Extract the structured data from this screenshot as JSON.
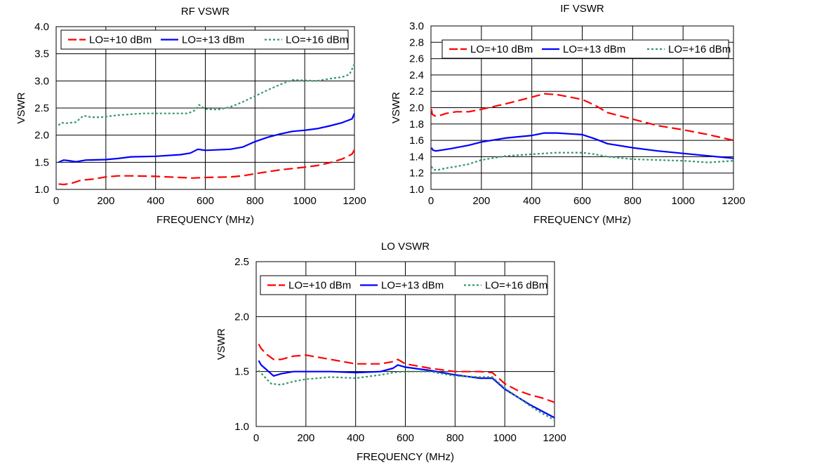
{
  "chart_data": [
    {
      "type": "line",
      "title": "RF VSWR",
      "xlabel": "FREQUENCY (MHz)",
      "ylabel": "VSWR",
      "xlim": [
        0,
        1200
      ],
      "ylim": [
        1.0,
        4.0
      ],
      "xticks": [
        0,
        200,
        400,
        600,
        800,
        1000,
        1200
      ],
      "xtick_labels": [
        "0",
        "200",
        "400",
        "600",
        "800",
        "1000",
        "1200"
      ],
      "yticks": [
        1.0,
        1.5,
        2.0,
        2.5,
        3.0,
        3.5,
        4.0
      ],
      "ytick_labels": [
        "1.0",
        "1.5",
        "2.0",
        "2.5",
        "3.0",
        "3.5",
        "4.0"
      ],
      "grid": true,
      "legend_position": "top",
      "series": [
        {
          "name": "LO=+10 dBm",
          "color": "#ff0000",
          "style": "longdash",
          "x": [
            10,
            30,
            60,
            100,
            150,
            200,
            250,
            300,
            400,
            500,
            550,
            600,
            700,
            750,
            800,
            900,
            1000,
            1050,
            1100,
            1150,
            1190,
            1200
          ],
          "y": [
            1.1,
            1.09,
            1.11,
            1.17,
            1.19,
            1.23,
            1.25,
            1.25,
            1.24,
            1.22,
            1.21,
            1.22,
            1.23,
            1.25,
            1.29,
            1.36,
            1.41,
            1.44,
            1.49,
            1.56,
            1.65,
            1.73
          ]
        },
        {
          "name": "LO=+13 dBm",
          "color": "#0000ff",
          "style": "solid",
          "x": [
            10,
            30,
            50,
            80,
            120,
            200,
            250,
            300,
            400,
            500,
            540,
            570,
            600,
            700,
            750,
            800,
            850,
            900,
            950,
            1000,
            1050,
            1100,
            1150,
            1190,
            1200
          ],
          "y": [
            1.5,
            1.54,
            1.53,
            1.51,
            1.54,
            1.55,
            1.57,
            1.6,
            1.61,
            1.64,
            1.67,
            1.74,
            1.72,
            1.74,
            1.78,
            1.88,
            1.96,
            2.02,
            2.07,
            2.09,
            2.12,
            2.17,
            2.23,
            2.3,
            2.4
          ]
        },
        {
          "name": "LO=+16 dBm",
          "color": "#339966",
          "style": "dotted",
          "x": [
            10,
            20,
            40,
            80,
            110,
            140,
            180,
            250,
            350,
            450,
            530,
            560,
            575,
            600,
            650,
            700,
            750,
            800,
            850,
            900,
            950,
            1000,
            1050,
            1100,
            1150,
            1180,
            1200
          ],
          "y": [
            2.18,
            2.23,
            2.22,
            2.24,
            2.36,
            2.33,
            2.33,
            2.37,
            2.4,
            2.4,
            2.4,
            2.46,
            2.56,
            2.48,
            2.47,
            2.52,
            2.61,
            2.72,
            2.83,
            2.93,
            3.02,
            3.01,
            3.0,
            3.04,
            3.07,
            3.12,
            3.31
          ]
        }
      ]
    },
    {
      "type": "line",
      "title": "IF VSWR",
      "xlabel": "FREQUENCY (MHz)",
      "ylabel": "VSWR",
      "xlim": [
        0,
        1200
      ],
      "ylim": [
        1.0,
        3.0
      ],
      "xticks": [
        0,
        200,
        400,
        600,
        800,
        1000,
        1200
      ],
      "xtick_labels": [
        "0",
        "200",
        "400",
        "600",
        "800",
        "1000",
        "1200"
      ],
      "yticks": [
        1.0,
        1.2,
        1.4,
        1.6,
        1.8,
        2.0,
        2.2,
        2.4,
        2.6,
        2.8,
        3.0
      ],
      "ytick_labels": [
        "1.0",
        "1.2",
        "1.4",
        "1.6",
        "1.8",
        "2.0",
        "2.2",
        "2.4",
        "2.6",
        "2.8",
        "3.0"
      ],
      "grid": true,
      "legend_position": "top",
      "series": [
        {
          "name": "LO=+10 dBm",
          "color": "#ff0000",
          "style": "longdash",
          "x": [
            2,
            5,
            15,
            30,
            60,
            100,
            150,
            200,
            300,
            400,
            450,
            500,
            600,
            650,
            700,
            800,
            900,
            1000,
            1100,
            1200
          ],
          "y": [
            1.98,
            1.92,
            1.9,
            1.9,
            1.93,
            1.95,
            1.95,
            1.98,
            2.05,
            2.13,
            2.17,
            2.16,
            2.1,
            2.03,
            1.94,
            1.86,
            1.78,
            1.73,
            1.67,
            1.6
          ]
        },
        {
          "name": "LO=+13 dBm",
          "color": "#0000ff",
          "style": "solid",
          "x": [
            2,
            8,
            20,
            40,
            80,
            150,
            200,
            300,
            400,
            450,
            500,
            550,
            600,
            650,
            700,
            800,
            900,
            1000,
            1100,
            1200
          ],
          "y": [
            1.51,
            1.48,
            1.47,
            1.48,
            1.5,
            1.54,
            1.58,
            1.63,
            1.66,
            1.69,
            1.69,
            1.68,
            1.67,
            1.62,
            1.56,
            1.51,
            1.47,
            1.44,
            1.41,
            1.38
          ]
        },
        {
          "name": "LO=+16 dBm",
          "color": "#339966",
          "style": "dotted",
          "x": [
            2,
            10,
            30,
            60,
            100,
            150,
            200,
            300,
            400,
            450,
            500,
            550,
            600,
            650,
            700,
            800,
            900,
            1000,
            1100,
            1200
          ],
          "y": [
            1.28,
            1.24,
            1.24,
            1.26,
            1.28,
            1.31,
            1.36,
            1.41,
            1.43,
            1.44,
            1.45,
            1.45,
            1.45,
            1.43,
            1.4,
            1.37,
            1.36,
            1.35,
            1.33,
            1.35
          ]
        }
      ]
    },
    {
      "type": "line",
      "title": "LO VSWR",
      "xlabel": "FREQUENCY (MHz)",
      "ylabel": "VSWR",
      "xlim": [
        0,
        1200
      ],
      "ylim": [
        1.0,
        2.5
      ],
      "xticks": [
        0,
        200,
        400,
        600,
        800,
        1000,
        1200
      ],
      "xtick_labels": [
        "0",
        "200",
        "400",
        "600",
        "800",
        "1000",
        "1200"
      ],
      "yticks": [
        1.0,
        1.5,
        2.0,
        2.5
      ],
      "ytick_labels": [
        "1.0",
        "1.5",
        "2.0",
        "2.5"
      ],
      "grid": true,
      "legend_position": "top",
      "series": [
        {
          "name": "LO=+10 dBm",
          "color": "#ff0000",
          "style": "longdash",
          "x": [
            10,
            20,
            40,
            70,
            100,
            150,
            200,
            300,
            400,
            500,
            550,
            570,
            600,
            700,
            800,
            900,
            950,
            1000,
            1050,
            1100,
            1150,
            1200
          ],
          "y": [
            1.75,
            1.71,
            1.66,
            1.61,
            1.61,
            1.64,
            1.65,
            1.61,
            1.57,
            1.57,
            1.59,
            1.61,
            1.57,
            1.53,
            1.5,
            1.5,
            1.49,
            1.39,
            1.33,
            1.29,
            1.26,
            1.22
          ]
        },
        {
          "name": "LO=+13 dBm",
          "color": "#0000ff",
          "style": "solid",
          "x": [
            10,
            20,
            40,
            70,
            100,
            150,
            200,
            300,
            400,
            500,
            550,
            570,
            600,
            700,
            800,
            900,
            950,
            1000,
            1050,
            1100,
            1150,
            1200
          ],
          "y": [
            1.6,
            1.56,
            1.52,
            1.46,
            1.48,
            1.5,
            1.5,
            1.5,
            1.49,
            1.5,
            1.53,
            1.56,
            1.54,
            1.51,
            1.47,
            1.44,
            1.44,
            1.34,
            1.27,
            1.2,
            1.14,
            1.08
          ]
        },
        {
          "name": "LO=+16 dBm",
          "color": "#339966",
          "style": "dotted",
          "x": [
            10,
            30,
            60,
            100,
            150,
            200,
            300,
            400,
            500,
            550,
            600,
            700,
            800,
            900,
            950,
            1000,
            1050,
            1100,
            1150,
            1200
          ],
          "y": [
            1.51,
            1.46,
            1.39,
            1.38,
            1.41,
            1.43,
            1.45,
            1.44,
            1.47,
            1.49,
            1.5,
            1.5,
            1.46,
            1.45,
            1.45,
            1.35,
            1.27,
            1.19,
            1.12,
            1.06
          ]
        }
      ]
    }
  ]
}
